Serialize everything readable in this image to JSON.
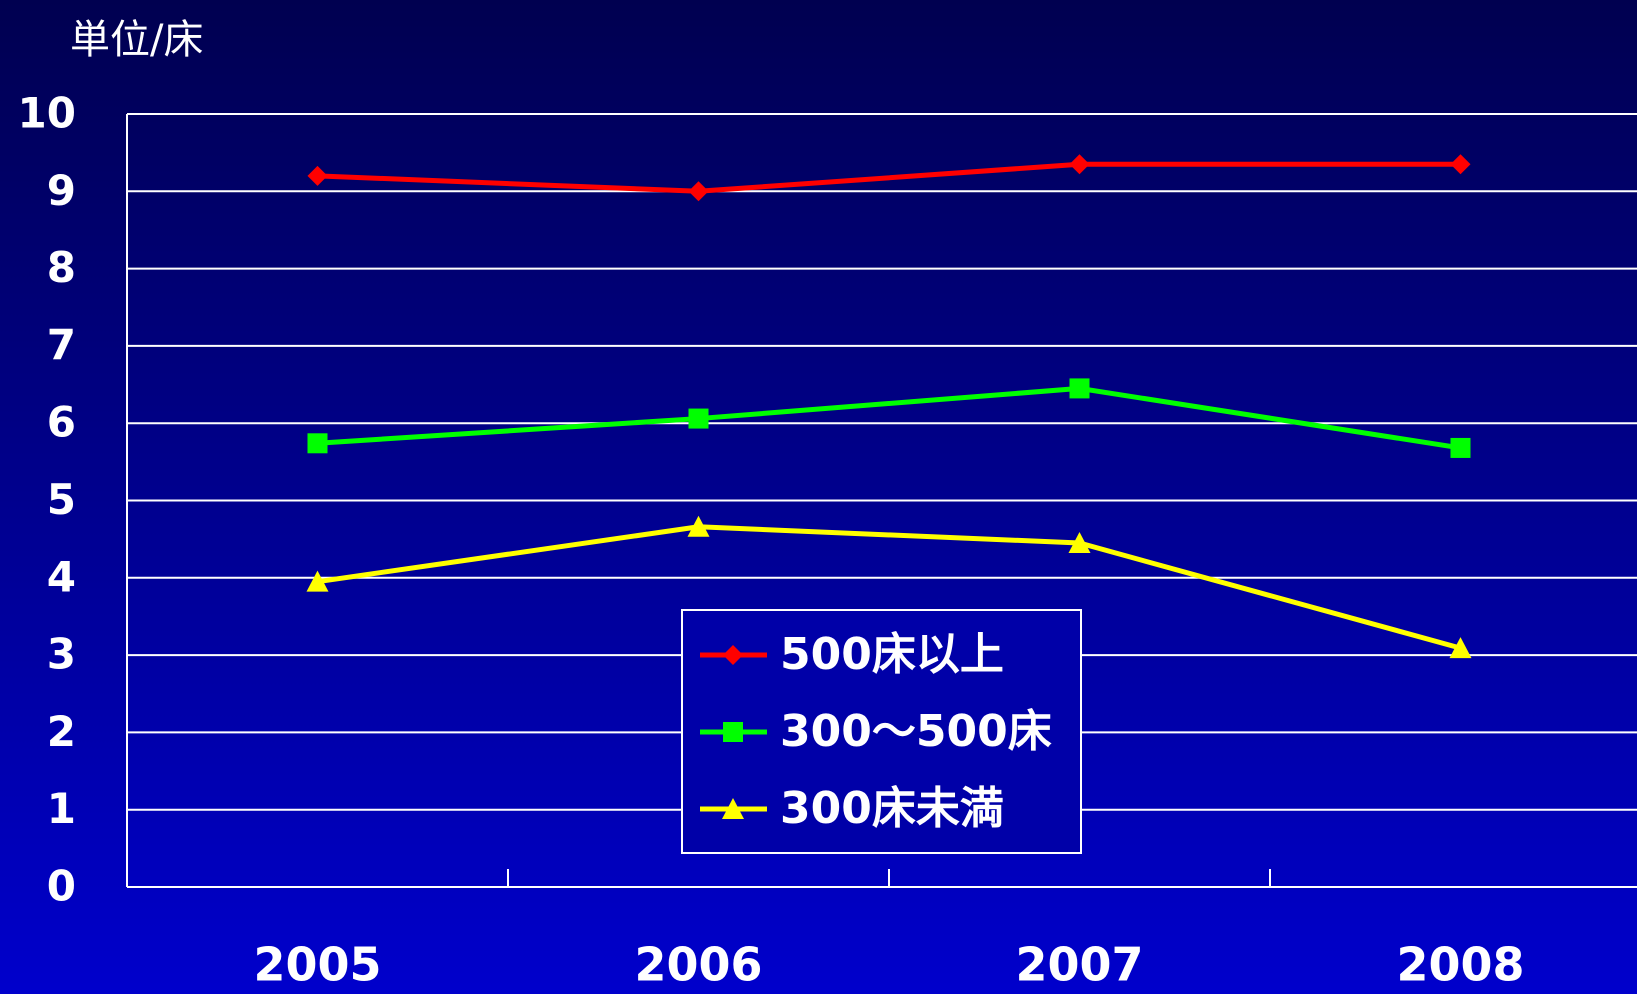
{
  "chart_data": {
    "type": "line",
    "y_axis_label": "単位/床",
    "categories": [
      "2005",
      "2006",
      "2007",
      "2008"
    ],
    "series": [
      {
        "name": "500床以上",
        "color": "#ff0000",
        "marker": "diamond",
        "values": [
          9.2,
          9.0,
          9.35,
          9.35
        ]
      },
      {
        "name": "300～500床",
        "color": "#00ff00",
        "marker": "square",
        "values": [
          5.74,
          6.06,
          6.45,
          5.68
        ]
      },
      {
        "name": "300床未満",
        "color": "#ffff00",
        "marker": "triangle",
        "values": [
          3.95,
          4.66,
          4.45,
          3.09
        ]
      }
    ],
    "ylim": [
      0,
      10
    ],
    "yticks": [
      0,
      1,
      2,
      3,
      4,
      5,
      6,
      7,
      8,
      9,
      10
    ],
    "grid": true,
    "legend": "bottom-center"
  }
}
